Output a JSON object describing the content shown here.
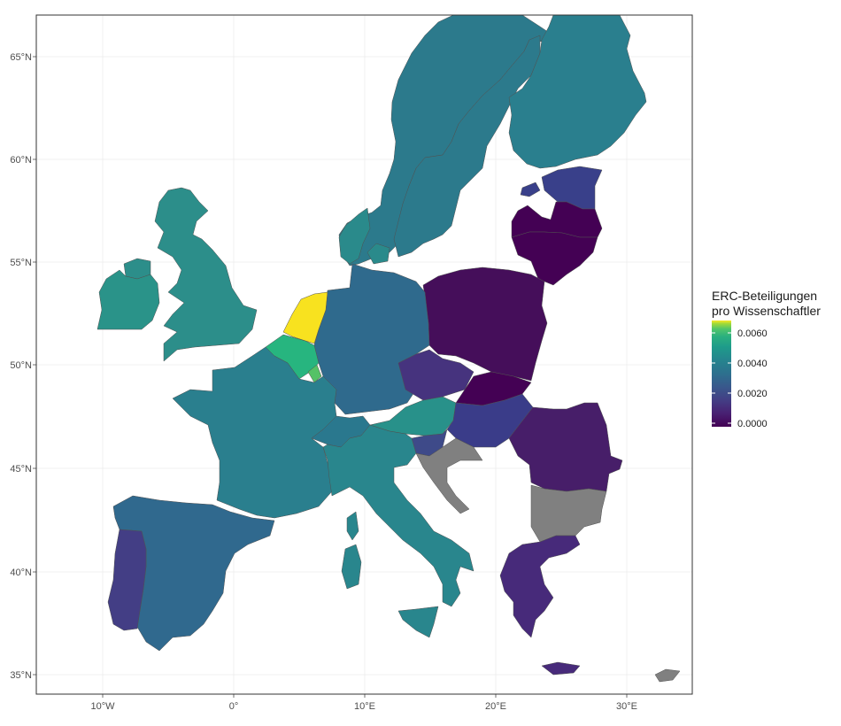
{
  "chart_data": {
    "type": "choropleth",
    "title": "",
    "legend": {
      "title_line1": "ERC-Beteiligungen",
      "title_line2": "pro Wissenschaftler",
      "ticks": [
        "0.0060",
        "0.0040",
        "0.0020",
        "0.0000"
      ],
      "placement": "right"
    },
    "x_ticks": [
      "10°W",
      "0°",
      "10°E",
      "20°E",
      "30°E"
    ],
    "y_ticks": [
      "65°N",
      "60°N",
      "55°N",
      "50°N",
      "45°N",
      "40°N",
      "35°N"
    ],
    "xlim": [
      -15,
      35
    ],
    "ylim": [
      34.2,
      67
    ],
    "grid": true,
    "no_data_color": "#808080",
    "regions": [
      {
        "name": "Norway",
        "color": "#2C7A8C"
      },
      {
        "name": "Sweden",
        "color": "#2C7A8C"
      },
      {
        "name": "Finland",
        "color": "#2A7F8E"
      },
      {
        "name": "Estonia",
        "color": "#39408A"
      },
      {
        "name": "Latvia",
        "color": "#440154"
      },
      {
        "name": "Lithuania",
        "color": "#440154"
      },
      {
        "name": "Poland",
        "color": "#450E5A"
      },
      {
        "name": "Germany",
        "color": "#2F6A8D"
      },
      {
        "name": "Denmark",
        "color": "#2A8A8B"
      },
      {
        "name": "Netherlands",
        "color": "#F8E21F"
      },
      {
        "name": "Belgium",
        "color": "#27B57F"
      },
      {
        "name": "Luxembourg",
        "color": "#55C266"
      },
      {
        "name": "United Kingdom",
        "color": "#2C8E8A"
      },
      {
        "name": "Ireland",
        "color": "#2A9389"
      },
      {
        "name": "France",
        "color": "#2A7F8E"
      },
      {
        "name": "Switzerland",
        "color": "#2A788E"
      },
      {
        "name": "Austria",
        "color": "#28918A"
      },
      {
        "name": "Czechia",
        "color": "#46337E"
      },
      {
        "name": "Slovakia",
        "color": "#440154"
      },
      {
        "name": "Hungary",
        "color": "#3A3C89"
      },
      {
        "name": "Slovenia",
        "color": "#3E4A89"
      },
      {
        "name": "Croatia",
        "color": "#808080"
      },
      {
        "name": "Romania",
        "color": "#471E69"
      },
      {
        "name": "Bulgaria",
        "color": "#808080"
      },
      {
        "name": "Greece",
        "color": "#472A7A"
      },
      {
        "name": "Italy",
        "color": "#29868D"
      },
      {
        "name": "Spain",
        "color": "#30698E"
      },
      {
        "name": "Portugal",
        "color": "#433E85"
      },
      {
        "name": "Cyprus",
        "color": "#808080"
      }
    ]
  }
}
